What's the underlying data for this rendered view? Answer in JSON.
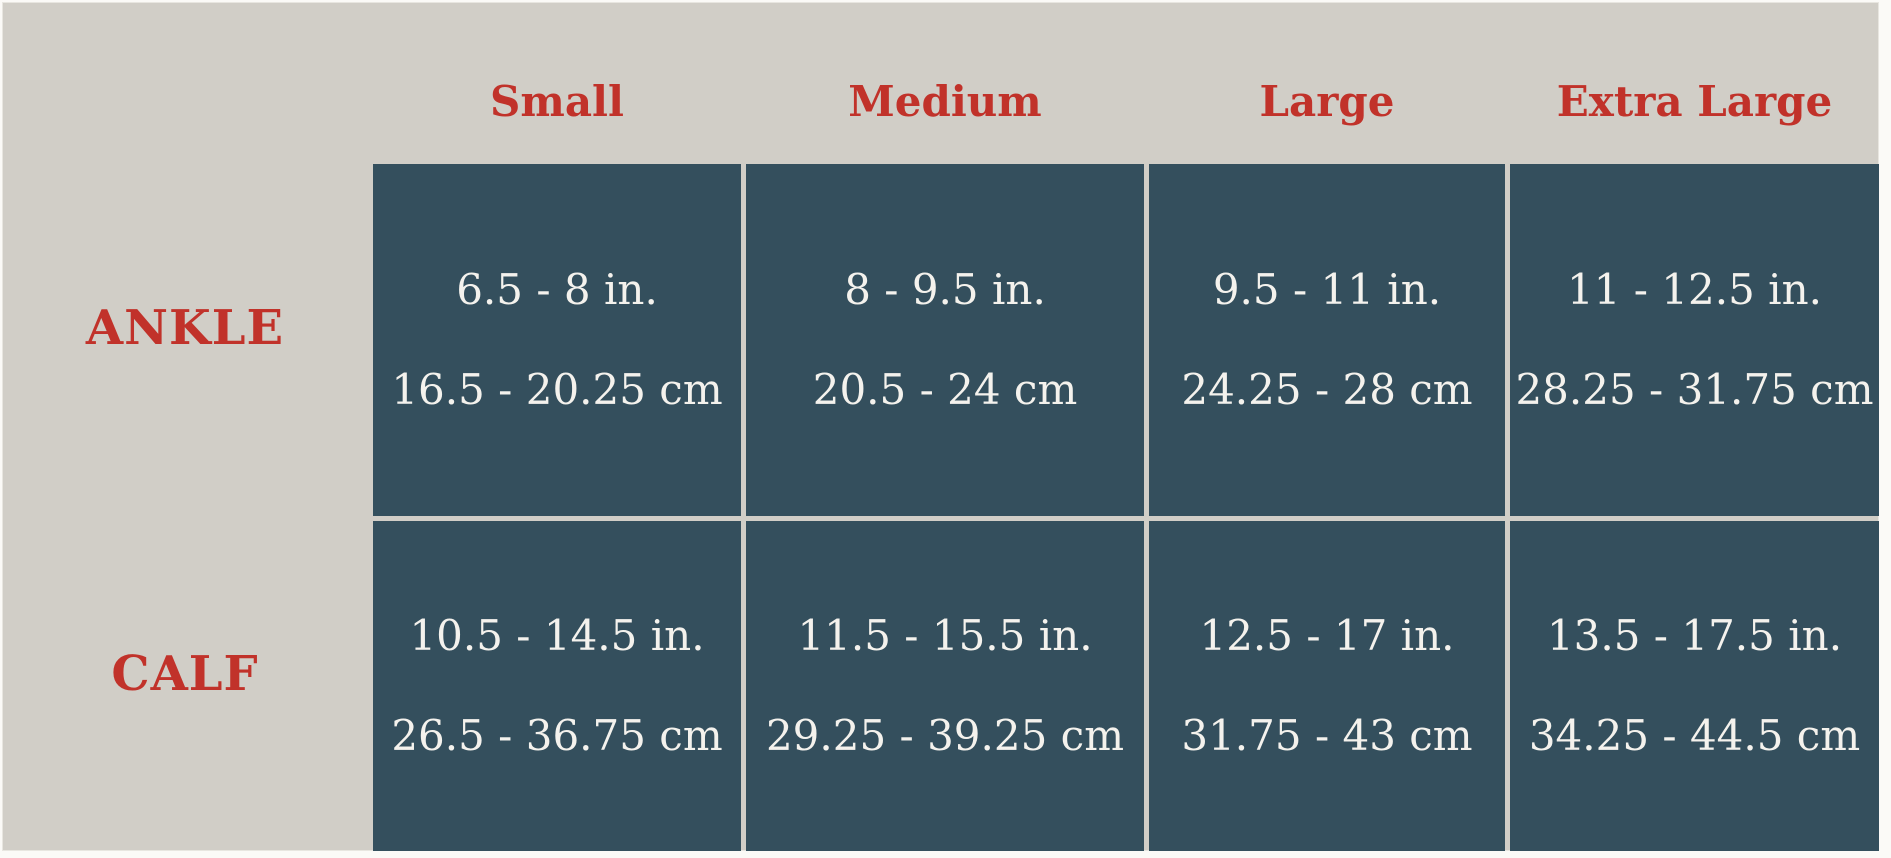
{
  "chart_data": {
    "type": "table",
    "columns": [
      "Small",
      "Medium",
      "Large",
      "Extra Large"
    ],
    "rows": [
      {
        "label": "ANKLE",
        "cells": [
          {
            "inches": "6.5 - 8 in.",
            "centimeters": "16.5 - 20.25 cm"
          },
          {
            "inches": "8 - 9.5 in.",
            "centimeters": "20.5 - 24 cm"
          },
          {
            "inches": "9.5 - 11 in.",
            "centimeters": "24.25 - 28 cm"
          },
          {
            "inches": "11 - 12.5 in.",
            "centimeters": "28.25 - 31.75 cm"
          }
        ]
      },
      {
        "label": "CALF",
        "cells": [
          {
            "inches": "10.5 - 14.5 in.",
            "centimeters": "26.5 - 36.75 cm"
          },
          {
            "inches": "11.5 - 15.5 in.",
            "centimeters": "29.25 - 39.25 cm"
          },
          {
            "inches": "12.5 - 17 in.",
            "centimeters": "31.75 - 43 cm"
          },
          {
            "inches": "13.5 - 17.5 in.",
            "centimeters": "34.25 - 44.5 cm"
          }
        ]
      }
    ],
    "layout": {
      "legend": "none",
      "grid": "light gaps between dark cells",
      "header_position": "top",
      "row_label_position": "left"
    }
  },
  "colors": {
    "canvas_background": "#d1cec7",
    "page_border": "#fbfaf7",
    "cell_background": "#344f5d",
    "cell_text": "#f4f2ed",
    "accent_red": "#c1322a"
  }
}
